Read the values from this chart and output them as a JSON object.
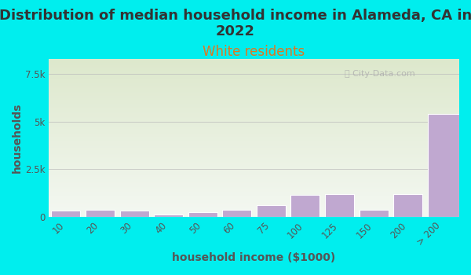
{
  "title": "Distribution of median household income in Alameda, CA in\n2022",
  "subtitle": "White residents",
  "xlabel": "household income ($1000)",
  "ylabel": "households",
  "background_color": "#00EEEE",
  "plot_bg_top": "#dde8cc",
  "plot_bg_bottom": "#f0f4ec",
  "bar_color": "#c0a8d0",
  "bar_edge_color": "#ffffff",
  "categories": [
    "10",
    "20",
    "30",
    "40",
    "50",
    "60",
    "75",
    "100",
    "125",
    "150",
    "200",
    "> 200"
  ],
  "values": [
    320,
    370,
    320,
    120,
    240,
    360,
    620,
    1150,
    1200,
    380,
    1200,
    5400
  ],
  "yticks": [
    0,
    2500,
    5000,
    7500
  ],
  "ytick_labels": [
    "0",
    "2.5k",
    "5k",
    "7.5k"
  ],
  "ylim": [
    0,
    8300
  ],
  "title_fontsize": 13,
  "subtitle_fontsize": 12,
  "subtitle_color": "#e07820",
  "ylabel_color": "#555555",
  "axis_label_fontsize": 10,
  "tick_fontsize": 8.5,
  "watermark": "City-Data.com",
  "last_bar_extends": true
}
